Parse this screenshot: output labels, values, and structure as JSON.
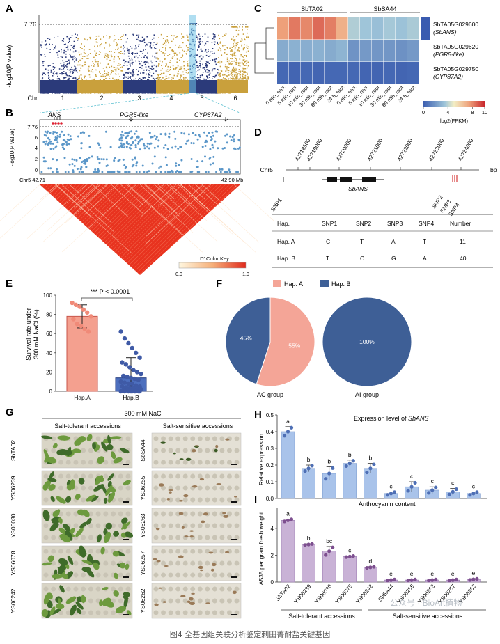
{
  "caption": "图4 全基因组关联分析鉴定刺田菁耐盐关键基因",
  "watermark": "公众号 · BioArt植物",
  "panelA": {
    "letter": "A",
    "ylabel": "-log10(P value)",
    "threshold_label": "7.76",
    "chr_label": "Chr.",
    "chromosomes": [
      "1",
      "2",
      "3",
      "4",
      "5",
      "6"
    ]
  },
  "panelB": {
    "letter": "B",
    "genes": [
      "ANS",
      "PGR5-like",
      "CYP87A2"
    ],
    "ylabel": "-log10(P value)",
    "yticks": [
      "7.76",
      "6",
      "4",
      "2",
      "0"
    ],
    "x_start": "Chr5 42.71",
    "x_end": "42.90 Mb",
    "key_title": "D' Color Key",
    "key_min": "0.0",
    "key_max": "1.0"
  },
  "panelC": {
    "letter": "C",
    "groups": [
      "SbTA02",
      "SbSA44"
    ],
    "genes": [
      {
        "id": "SbTA05G029600",
        "alias": "(SbANS)"
      },
      {
        "id": "SbTA05G029620",
        "alias": "(PGR5-like)"
      },
      {
        "id": "SbTA05G029750",
        "alias": "(CYP87A2)"
      }
    ],
    "columns": [
      "0 min_root",
      "5 min_root",
      "10 min_root",
      "30 min_root",
      "60 min_root",
      "24 h_root",
      "0 min_root",
      "5 min_root",
      "10 min_root",
      "30 min_root",
      "60 min_root",
      "24 h_root"
    ],
    "values": [
      [
        7.5,
        8.3,
        8.0,
        8.6,
        8.2,
        7.0,
        3.8,
        3.5,
        3.3,
        3.6,
        3.4,
        3.7
      ],
      [
        2.6,
        2.8,
        2.7,
        2.8,
        2.6,
        2.9,
        1.8,
        2.0,
        1.9,
        1.9,
        1.7,
        2.0
      ],
      [
        0.3,
        0.2,
        0.3,
        0.2,
        0.3,
        0.3,
        0.3,
        0.2,
        0.2,
        0.3,
        0.2,
        0.3
      ]
    ],
    "colorbar_ticks": [
      "0",
      "4",
      "8",
      "10"
    ],
    "colorbar_label": "log2(FPKM)"
  },
  "panelD": {
    "letter": "D",
    "positions": [
      "42718500",
      "42719000",
      "42720000",
      "42721000",
      "42722000",
      "42723000",
      "42724000"
    ],
    "chr": "Chr5",
    "unit": "bp",
    "gene": "SbANS",
    "snps": [
      "SNP1",
      "SNP2",
      "SNP3",
      "SNP4"
    ],
    "table_headers": [
      "Hap.",
      "SNP1",
      "SNP2",
      "SNP3",
      "SNP4",
      "Number"
    ],
    "table_rows": [
      [
        "Hap. A",
        "C",
        "T",
        "A",
        "T",
        "11"
      ],
      [
        "Hap. B",
        "T",
        "C",
        "G",
        "A",
        "40"
      ]
    ]
  },
  "panelE": {
    "letter": "E",
    "ylabel_line1": "Survival rate under",
    "ylabel_line2": "300 mM NaCl (%)",
    "yticks": [
      "100",
      "80",
      "60",
      "40",
      "20",
      "0"
    ],
    "significance": "*** P < 0.0001",
    "chart_data": {
      "type": "bar",
      "categories": [
        "Hap.A",
        "Hap.B"
      ],
      "values": [
        78,
        14
      ],
      "errors": [
        12,
        21
      ],
      "ylim": [
        0,
        100
      ],
      "colors": [
        "#f08a78",
        "#3f5aa6"
      ],
      "points": [
        [
          92,
          90,
          88,
          85,
          82,
          78,
          75,
          70,
          68,
          65,
          62
        ],
        [
          62,
          55,
          50,
          45,
          40,
          35,
          30,
          28,
          25,
          22,
          20,
          18,
          16,
          15,
          14,
          13,
          12,
          10,
          9,
          8,
          8,
          6,
          5,
          5,
          4,
          3,
          3,
          2,
          2,
          1,
          1,
          0,
          0,
          0,
          0,
          0,
          0,
          0,
          0,
          0
        ]
      ]
    }
  },
  "panelF": {
    "letter": "F",
    "legend": [
      "Hap. A",
      "Hap. B"
    ],
    "colors": [
      "#f4a597",
      "#3e5f96"
    ],
    "chart_data": {
      "type": "pie",
      "charts": [
        {
          "label": "AC group",
          "slices": [
            55,
            45
          ],
          "slice_labels": [
            "55%",
            "45%"
          ]
        },
        {
          "label": "AI group",
          "slices": [
            0,
            100
          ],
          "slice_labels": [
            "",
            "100%"
          ]
        }
      ]
    }
  },
  "panelG": {
    "letter": "G",
    "treatment": "300 mM NaCl",
    "left_title": "Salt-tolerant accessions",
    "right_title": "Salt-sensitive accessions",
    "left_rows": [
      "SbTA02",
      "YS06239",
      "YS06030",
      "YS06078",
      "YS06242"
    ],
    "right_rows": [
      "SbSA44",
      "YS06255",
      "YS06263",
      "YS06257",
      "YS06262"
    ]
  },
  "panelH": {
    "letter": "H",
    "title_prefix": "Expression level of ",
    "title_gene": "SbANS",
    "ylabel": "Relative expression",
    "yticks": [
      "0.5",
      "0.4",
      "0.3",
      "0.2",
      "0.1",
      "0.0"
    ],
    "chart_data": {
      "type": "bar",
      "categories": [
        "SbTA02",
        "YS06239",
        "YS06030",
        "YS06078",
        "YS06242",
        "SbSA44",
        "YS06255",
        "YS06263",
        "YS06257",
        "YS06262"
      ],
      "values": [
        0.4,
        0.18,
        0.15,
        0.21,
        0.18,
        0.03,
        0.07,
        0.05,
        0.04,
        0.03
      ],
      "errors": [
        0.03,
        0.02,
        0.04,
        0.02,
        0.03,
        0.01,
        0.03,
        0.02,
        0.02,
        0.01
      ],
      "letters": [
        "a",
        "b",
        "b",
        "b",
        "b",
        "c",
        "c",
        "c",
        "c",
        "c"
      ],
      "ylim": [
        0,
        0.5
      ]
    }
  },
  "panelI": {
    "letter": "I",
    "title": "Anthocyanin content",
    "ylabel": "A535 per gram fresh weight",
    "yticks": [
      "4",
      "2",
      "0"
    ],
    "chart_data": {
      "type": "bar",
      "categories": [
        "SbTA02",
        "YS06239",
        "YS06030",
        "YS06078",
        "YS06242",
        "SbSA44",
        "YS06255",
        "YS06263",
        "YS06257",
        "YS06262"
      ],
      "values": [
        4.6,
        2.8,
        2.3,
        1.9,
        1.1,
        0.15,
        0.15,
        0.15,
        0.15,
        0.2
      ],
      "errors": [
        0.1,
        0.05,
        0.35,
        0.05,
        0.05,
        0.05,
        0.05,
        0.05,
        0.05,
        0.05
      ],
      "letters": [
        "a",
        "b",
        "bc",
        "c",
        "d",
        "e",
        "e",
        "e",
        "e",
        "e"
      ],
      "ylim": [
        0,
        5.5
      ]
    },
    "group_left": "Salt-tolerant accessions",
    "group_right": "Salt-sensitive accessions"
  }
}
